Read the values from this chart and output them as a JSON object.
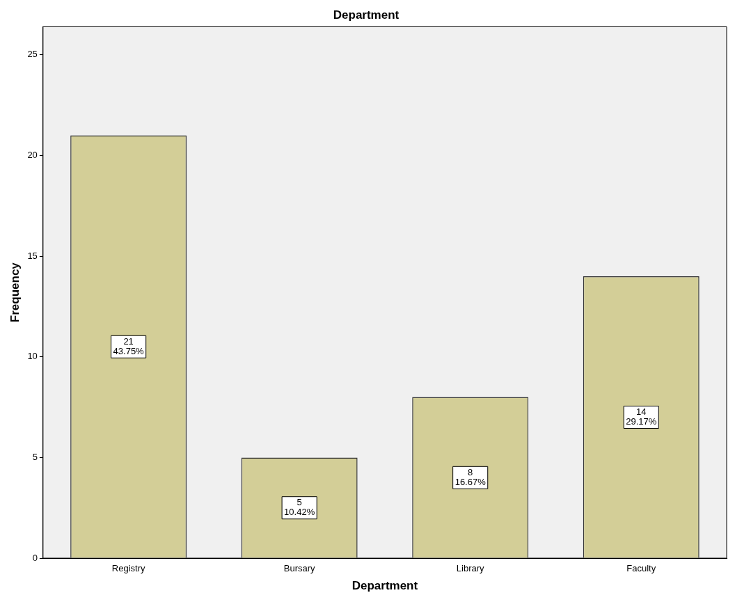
{
  "chart_data": {
    "type": "bar",
    "title": "Department",
    "xlabel": "Department",
    "ylabel": "Frequency",
    "categories": [
      "Registry",
      "Bursary",
      "Library",
      "Faculty"
    ],
    "values": [
      21,
      5,
      8,
      14
    ],
    "value_labels": [
      "21\n43.75%",
      "5\n10.42%",
      "8\n16.67%",
      "14\n29.17%"
    ],
    "color": "#d3ce97",
    "ylim": [
      0,
      26.4
    ],
    "yticks": [
      0,
      5,
      10,
      15,
      20,
      25
    ],
    "grid": false,
    "legend": false
  }
}
